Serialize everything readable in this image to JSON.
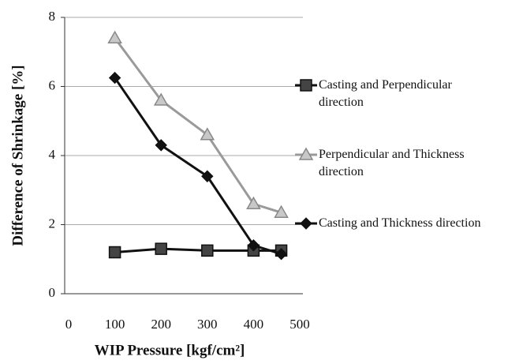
{
  "chart_data": {
    "type": "line",
    "xlabel": "WIP Pressure [kgf/cm²]",
    "ylabel": "Difference of Shrinkage [%]",
    "xlim": [
      0,
      500
    ],
    "xticks": [
      0,
      100,
      200,
      300,
      400,
      500
    ],
    "ylim": [
      0,
      8
    ],
    "yticks": [
      0,
      2,
      4,
      6,
      8
    ],
    "grid": true,
    "legend": "right",
    "series": [
      {
        "name": "Casting and Perpendicular direction",
        "color": "#111111",
        "marker": "square",
        "x": [
          100,
          200,
          300,
          400,
          460
        ],
        "values": [
          1.2,
          1.3,
          1.25,
          1.25,
          1.25
        ]
      },
      {
        "name": "Perpendicular and Thickness direction",
        "color": "#9a9a9a",
        "marker": "triangle",
        "x": [
          100,
          200,
          300,
          400,
          460
        ],
        "values": [
          7.4,
          5.6,
          4.6,
          2.6,
          2.35
        ]
      },
      {
        "name": "Casting and Thickness direction",
        "color": "#111111",
        "marker": "diamond",
        "x": [
          100,
          200,
          300,
          400,
          460
        ],
        "values": [
          6.25,
          4.3,
          3.4,
          1.4,
          1.15
        ]
      }
    ]
  }
}
